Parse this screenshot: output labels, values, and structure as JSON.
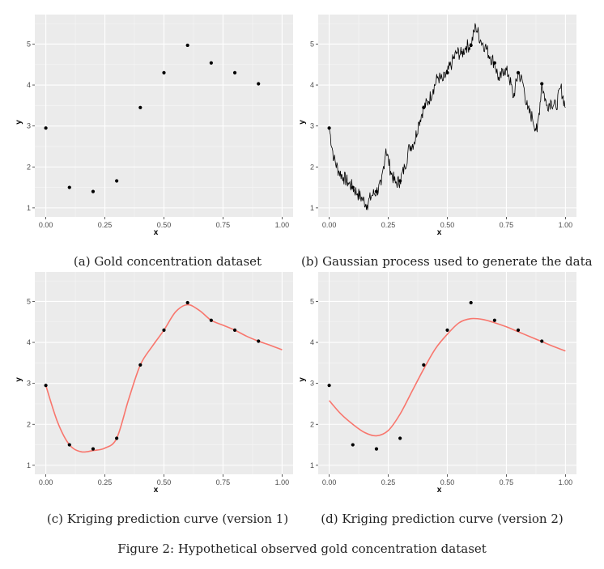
{
  "figure_caption": "Figure 2: Hypothetical observed gold concentration dataset",
  "panels": [
    {
      "caption": "(a) Gold concentration dataset"
    },
    {
      "caption": "(b) Gaussian process used to generate the data"
    },
    {
      "caption": "(c) Kriging prediction curve (version 1)"
    },
    {
      "caption": "(d) Kriging prediction curve (version 2)"
    }
  ],
  "chart_data": [
    {
      "type": "scatter",
      "xlabel": "x",
      "ylabel": "y",
      "xlim": [
        0,
        1
      ],
      "ylim": [
        1,
        5.5
      ],
      "xticks": [
        "0.00",
        "0.25",
        "0.50",
        "0.75",
        "1.00"
      ],
      "yticks": [
        "1",
        "2",
        "3",
        "4",
        "5"
      ],
      "points": {
        "x": [
          0.0,
          0.1,
          0.2,
          0.3,
          0.4,
          0.5,
          0.6,
          0.7,
          0.8,
          0.9
        ],
        "y": [
          2.95,
          1.5,
          1.4,
          1.66,
          3.45,
          4.3,
          4.97,
          4.54,
          4.3,
          4.03
        ]
      }
    },
    {
      "type": "line",
      "xlabel": "x",
      "ylabel": "y",
      "xlim": [
        0,
        1
      ],
      "ylim": [
        1,
        5.5
      ],
      "xticks": [
        "0.00",
        "0.25",
        "0.50",
        "0.75",
        "1.00"
      ],
      "yticks": [
        "1",
        "2",
        "3",
        "4",
        "5"
      ],
      "points": {
        "x": [
          0.0,
          0.1,
          0.2,
          0.3,
          0.4,
          0.5,
          0.6,
          0.7,
          0.8,
          0.9
        ],
        "y": [
          2.95,
          1.5,
          1.4,
          1.66,
          3.45,
          4.3,
          4.97,
          4.54,
          4.3,
          4.03
        ]
      },
      "series": [
        {
          "x": [
            0.0,
            0.02,
            0.04,
            0.06,
            0.08,
            0.1,
            0.12,
            0.14,
            0.16,
            0.18,
            0.2,
            0.22,
            0.24,
            0.26,
            0.28,
            0.3,
            0.32,
            0.34,
            0.36,
            0.38,
            0.4,
            0.42,
            0.44,
            0.46,
            0.48,
            0.5,
            0.52,
            0.54,
            0.56,
            0.58,
            0.6,
            0.62,
            0.64,
            0.66,
            0.68,
            0.7,
            0.72,
            0.74,
            0.76,
            0.78,
            0.8,
            0.82,
            0.84,
            0.86,
            0.88,
            0.9,
            0.92,
            0.94,
            0.96,
            0.98,
            1.0
          ],
          "y": [
            2.95,
            2.2,
            1.9,
            1.75,
            1.62,
            1.5,
            1.35,
            1.22,
            1.08,
            1.3,
            1.4,
            1.55,
            2.45,
            1.9,
            1.6,
            1.66,
            2.0,
            2.5,
            2.6,
            3.1,
            3.45,
            3.6,
            3.9,
            4.2,
            4.1,
            4.3,
            4.55,
            4.8,
            4.75,
            4.95,
            4.97,
            5.45,
            5.1,
            4.95,
            4.7,
            4.54,
            4.1,
            4.4,
            4.25,
            3.7,
            4.3,
            4.05,
            3.4,
            3.2,
            2.85,
            4.03,
            3.5,
            3.6,
            3.45,
            3.95,
            3.45
          ]
        }
      ]
    },
    {
      "type": "line",
      "xlabel": "x",
      "ylabel": "y",
      "xlim": [
        0,
        1
      ],
      "ylim": [
        1,
        5.5
      ],
      "xticks": [
        "0.00",
        "0.25",
        "0.50",
        "0.75",
        "1.00"
      ],
      "yticks": [
        "1",
        "2",
        "3",
        "4",
        "5"
      ],
      "points": {
        "x": [
          0.0,
          0.1,
          0.2,
          0.3,
          0.4,
          0.5,
          0.6,
          0.7,
          0.8,
          0.9
        ],
        "y": [
          2.95,
          1.5,
          1.4,
          1.66,
          3.45,
          4.3,
          4.97,
          4.54,
          4.3,
          4.03
        ]
      },
      "series": [
        {
          "x": [
            0.0,
            0.05,
            0.1,
            0.15,
            0.2,
            0.25,
            0.3,
            0.35,
            0.4,
            0.45,
            0.5,
            0.55,
            0.6,
            0.65,
            0.7,
            0.75,
            0.8,
            0.85,
            0.9,
            0.95,
            1.0
          ],
          "y": [
            2.95,
            2.05,
            1.5,
            1.33,
            1.36,
            1.42,
            1.66,
            2.6,
            3.45,
            3.9,
            4.3,
            4.75,
            4.92,
            4.78,
            4.54,
            4.42,
            4.3,
            4.15,
            4.03,
            3.93,
            3.82
          ]
        }
      ]
    },
    {
      "type": "line",
      "xlabel": "x",
      "ylabel": "y",
      "xlim": [
        0,
        1
      ],
      "ylim": [
        1,
        5.5
      ],
      "xticks": [
        "0.00",
        "0.25",
        "0.50",
        "0.75",
        "1.00"
      ],
      "yticks": [
        "1",
        "2",
        "3",
        "4",
        "5"
      ],
      "points": {
        "x": [
          0.0,
          0.1,
          0.2,
          0.3,
          0.4,
          0.5,
          0.6,
          0.7,
          0.8,
          0.9
        ],
        "y": [
          2.95,
          1.5,
          1.4,
          1.66,
          3.45,
          4.3,
          4.97,
          4.54,
          4.3,
          4.03
        ]
      },
      "series": [
        {
          "x": [
            0.0,
            0.05,
            0.1,
            0.15,
            0.2,
            0.25,
            0.3,
            0.35,
            0.4,
            0.45,
            0.5,
            0.55,
            0.6,
            0.65,
            0.7,
            0.75,
            0.8,
            0.85,
            0.9,
            0.95,
            1.0
          ],
          "y": [
            2.58,
            2.25,
            2.0,
            1.8,
            1.72,
            1.85,
            2.25,
            2.8,
            3.35,
            3.85,
            4.2,
            4.48,
            4.58,
            4.56,
            4.48,
            4.38,
            4.26,
            4.14,
            4.02,
            3.9,
            3.79
          ]
        }
      ]
    }
  ]
}
